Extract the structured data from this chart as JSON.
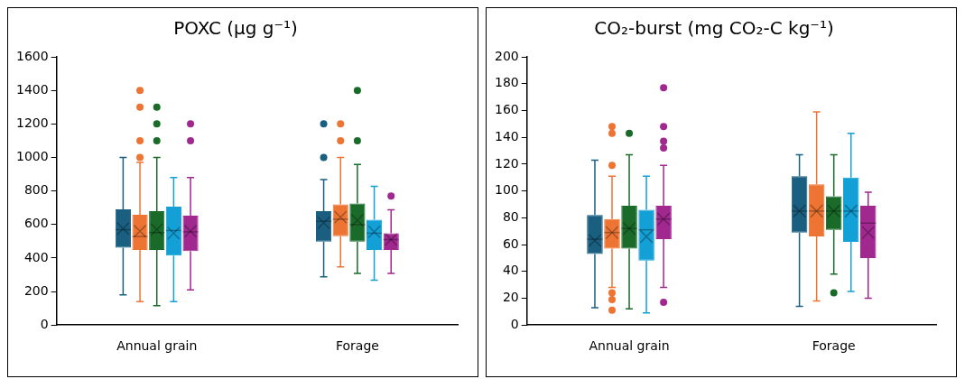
{
  "chart_data": [
    {
      "type": "box",
      "title": "POXC (µg g⁻¹)",
      "categories": [
        "Annual grain",
        "Forage"
      ],
      "ylim": [
        0,
        1600
      ],
      "yticks": [
        0,
        200,
        400,
        600,
        800,
        1000,
        1200,
        1400,
        1600
      ],
      "grid": false,
      "series": [
        {
          "color": "#1a5f80",
          "boxes": [
            {
              "low": 180,
              "q1": 462,
              "median": 569,
              "q3": 690,
              "high": 1000,
              "mean": 575
            },
            {
              "low": 288,
              "q1": 498,
              "median": 619,
              "q3": 679,
              "high": 868,
              "mean": 610,
              "outliers": [
                1000,
                1200
              ]
            }
          ]
        },
        {
          "color": "#ed7433",
          "boxes": [
            {
              "low": 140,
              "q1": 448,
              "median": 528,
              "q3": 658,
              "high": 970,
              "mean": 560,
              "outliers": [
                1000,
                1100,
                1300,
                1400
              ]
            },
            {
              "low": 347,
              "q1": 530,
              "median": 631,
              "q3": 720,
              "high": 1000,
              "mean": 644,
              "outliers": [
                1100,
                1200
              ]
            }
          ]
        },
        {
          "color": "#1a6b2a",
          "boxes": [
            {
              "low": 116,
              "q1": 448,
              "median": 552,
              "q3": 679,
              "high": 1000,
              "mean": 570,
              "outliers": [
                1100,
                1200,
                1300
              ]
            },
            {
              "low": 308,
              "q1": 498,
              "median": 599,
              "q3": 725,
              "high": 958,
              "mean": 625,
              "outliers": [
                1100,
                1400
              ]
            }
          ]
        },
        {
          "color": "#12a0d7",
          "boxes": [
            {
              "low": 140,
              "q1": 414,
              "median": 564,
              "q3": 706,
              "high": 880,
              "mean": 548
            },
            {
              "low": 267,
              "q1": 448,
              "median": 548,
              "q3": 628,
              "high": 827,
              "mean": 556
            }
          ]
        },
        {
          "color": "#a0288f",
          "boxes": [
            {
              "low": 210,
              "q1": 441,
              "median": 556,
              "q3": 652,
              "high": 880,
              "mean": 560,
              "outliers": [
                1100,
                1200
              ]
            },
            {
              "low": 308,
              "q1": 448,
              "median": 510,
              "q3": 548,
              "high": 688,
              "mean": 510,
              "outliers": [
                770
              ]
            }
          ]
        }
      ]
    },
    {
      "type": "box",
      "title": "CO₂-burst (mg CO₂-C kg⁻¹)",
      "categories": [
        "Annual grain",
        "Forage"
      ],
      "ylim": [
        0,
        200
      ],
      "yticks": [
        0,
        20,
        40,
        60,
        80,
        100,
        120,
        140,
        160,
        180,
        200
      ],
      "grid": false,
      "series": [
        {
          "color": "#1a5f80",
          "boxes": [
            {
              "low": 13,
              "q1": 53,
              "median": 64,
              "q3": 82,
              "high": 123,
              "mean": 63
            },
            {
              "low": 14,
              "q1": 69,
              "median": 85,
              "q3": 111,
              "high": 127,
              "mean": 85
            }
          ]
        },
        {
          "color": "#ed7433",
          "boxes": [
            {
              "low": 28,
              "q1": 57,
              "median": 69,
              "q3": 79,
              "high": 111,
              "mean": 69,
              "outliers": [
                11,
                19,
                24,
                119,
                143,
                148
              ]
            },
            {
              "low": 18,
              "q1": 66,
              "median": 85,
              "q3": 105,
              "high": 159,
              "mean": 85
            }
          ]
        },
        {
          "color": "#1a6b2a",
          "boxes": [
            {
              "low": 12,
              "q1": 57,
              "median": 72,
              "q3": 89,
              "high": 127,
              "mean": 72,
              "outliers": [
                143
              ]
            },
            {
              "low": 38,
              "q1": 71,
              "median": 85,
              "q3": 96,
              "high": 127,
              "mean": 85,
              "outliers": [
                24
              ]
            }
          ]
        },
        {
          "color": "#12a0d7",
          "boxes": [
            {
              "low": 9,
              "q1": 48,
              "median": 71,
              "q3": 86,
              "high": 111,
              "mean": 66
            },
            {
              "low": 25,
              "q1": 62,
              "median": 85,
              "q3": 110,
              "high": 143,
              "mean": 85
            }
          ]
        },
        {
          "color": "#a0288f",
          "boxes": [
            {
              "low": 28,
              "q1": 64,
              "median": 79,
              "q3": 89,
              "high": 119,
              "mean": 79,
              "outliers": [
                17,
                132,
                137,
                148,
                177
              ]
            },
            {
              "low": 20,
              "q1": 50,
              "median": 76,
              "q3": 89,
              "high": 99,
              "mean": 69
            }
          ]
        }
      ]
    }
  ]
}
